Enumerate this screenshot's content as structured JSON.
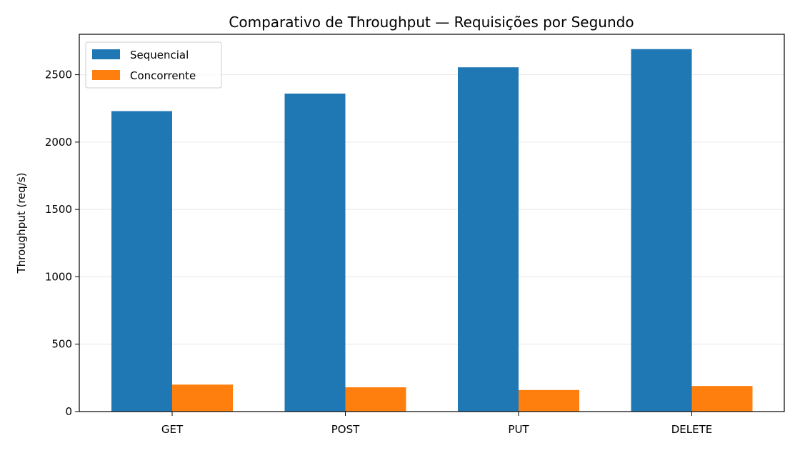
{
  "chart_data": {
    "type": "bar",
    "title": "Comparativo de Throughput — Requisições por Segundo",
    "xlabel": "",
    "ylabel": "Throughput (req/s)",
    "categories": [
      "GET",
      "POST",
      "PUT",
      "DELETE"
    ],
    "series": [
      {
        "name": "Sequencial",
        "values": [
          2230,
          2360,
          2555,
          2690
        ],
        "color": "#1f77b4"
      },
      {
        "name": "Concorrente",
        "values": [
          200,
          180,
          160,
          190
        ],
        "color": "#ff7f0e"
      }
    ],
    "ylim": [
      0,
      2800
    ],
    "yticks": [
      0,
      500,
      1000,
      1500,
      2000,
      2500
    ],
    "grid": "horizontal",
    "legend_position": "top-left"
  }
}
